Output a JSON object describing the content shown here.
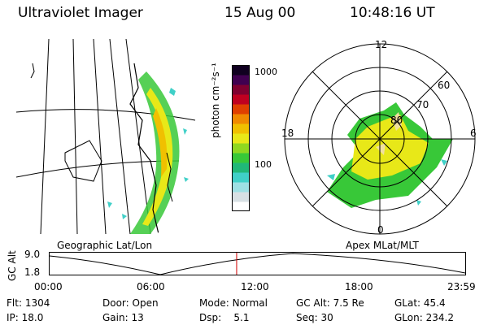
{
  "header": {
    "title": "Ultraviolet Imager",
    "date": "15 Aug 00",
    "time": "10:48:16 UT"
  },
  "colorbar": {
    "unit_label": "photon cm⁻²s⁻¹",
    "ticks": [
      "1000",
      "100"
    ]
  },
  "polar_plot": {
    "mlt_labels": {
      "top": "12",
      "left": "18",
      "right": "6",
      "bottom": "0"
    },
    "lat_labels": [
      "60",
      "70",
      "80"
    ]
  },
  "panel_labels": {
    "left": "Geographic Lat/Lon",
    "right": "Apex MLat/MLT"
  },
  "alt_plot": {
    "axis_label": "GC Alt",
    "y_ticks": [
      "9.0",
      "1.8"
    ],
    "x_ticks": [
      "00:00",
      "06:00",
      "12:00",
      "18:00",
      "23:59"
    ],
    "current_time_fraction": 0.45
  },
  "info": {
    "flt_label": "Flt:",
    "flt_value": "1304",
    "ip_label": "IP:",
    "ip_value": "18.0",
    "door_label": "Door:",
    "door_value": "Open",
    "gain_label": "Gain:",
    "gain_value": "13",
    "mode_label": "Mode:",
    "mode_value": "Normal",
    "dsp_label": "Dsp:",
    "dsp_value": "5.1",
    "gcalt_label": "GC Alt:",
    "gcalt_value": "7.5 Re",
    "seq_label": "Seq:",
    "seq_value": "30",
    "glat_label": "GLat:",
    "glat_value": "45.4",
    "glon_label": "GLon:",
    "glon_value": "234.2"
  },
  "colors": {
    "marker": "#d00000",
    "colorbar": [
      "#ffffff",
      "#d8e0e4",
      "#9ee0e4",
      "#40d0c8",
      "#20b878",
      "#38c838",
      "#90d820",
      "#e8e818",
      "#f0c000",
      "#f08a00",
      "#e04000",
      "#c00020",
      "#800030",
      "#400050",
      "#100020"
    ]
  }
}
